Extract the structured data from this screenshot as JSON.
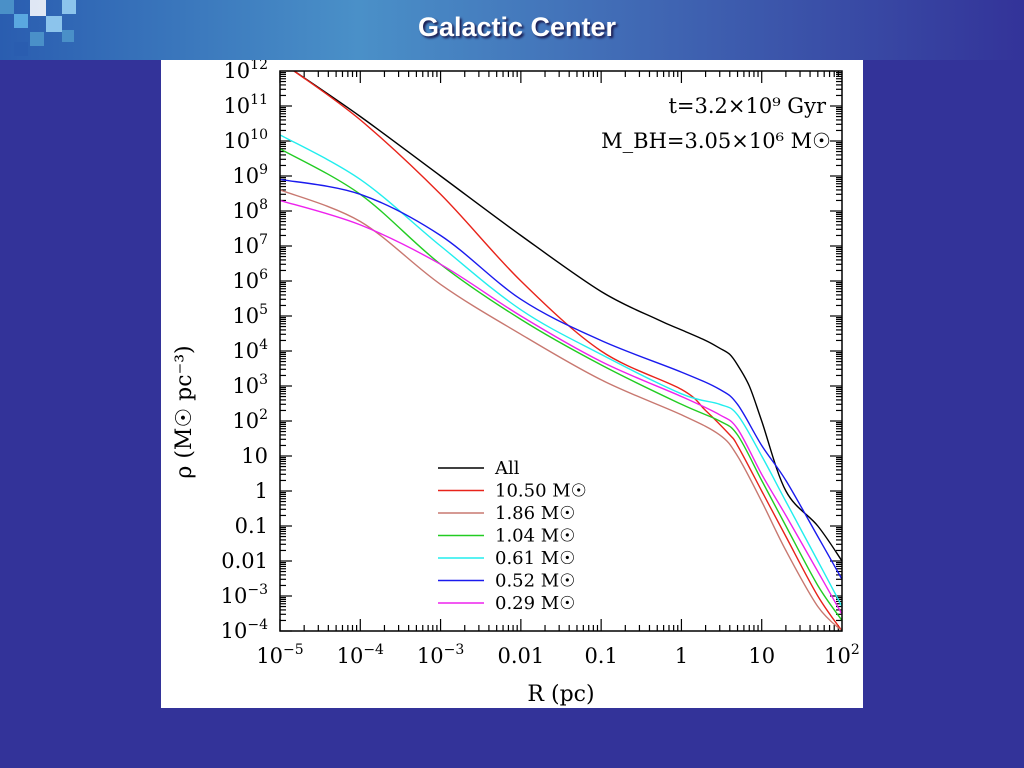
{
  "slide": {
    "title": "Galactic Center"
  },
  "colors": {
    "background": "#333399",
    "all": "#000000",
    "m1050": "#e8231a",
    "m186": "#c87870",
    "m104": "#22cc22",
    "m061": "#22eeee",
    "m052": "#1a1aee",
    "m029": "#ee22ee"
  },
  "chart_data": {
    "type": "line",
    "xlabel": "R (pc)",
    "ylabel": "ρ (M☉ pc⁻³)",
    "x_scale": "log",
    "y_scale": "log",
    "xlim": [
      1e-05,
      100
    ],
    "ylim": [
      0.0001,
      1000000000000
    ],
    "x_ticks": [
      {
        "value": 1e-05,
        "base": "10",
        "exp": "−5"
      },
      {
        "value": 0.0001,
        "base": "10",
        "exp": "−4"
      },
      {
        "value": 0.001,
        "base": "10",
        "exp": "−3"
      },
      {
        "value": 0.01,
        "base": "0.01",
        "exp": ""
      },
      {
        "value": 0.1,
        "base": "0.1",
        "exp": ""
      },
      {
        "value": 1,
        "base": "1",
        "exp": ""
      },
      {
        "value": 10,
        "base": "10",
        "exp": ""
      },
      {
        "value": 100,
        "base": "10",
        "exp": "2"
      }
    ],
    "y_ticks": [
      {
        "value": 0.0001,
        "base": "10",
        "exp": "−4"
      },
      {
        "value": 0.001,
        "base": "10",
        "exp": "−3"
      },
      {
        "value": 0.01,
        "base": "0.01",
        "exp": ""
      },
      {
        "value": 0.1,
        "base": "0.1",
        "exp": ""
      },
      {
        "value": 1,
        "base": "1",
        "exp": ""
      },
      {
        "value": 10,
        "base": "10",
        "exp": ""
      },
      {
        "value": 100,
        "base": "10",
        "exp": "2"
      },
      {
        "value": 1000,
        "base": "10",
        "exp": "3"
      },
      {
        "value": 10000,
        "base": "10",
        "exp": "4"
      },
      {
        "value": 100000,
        "base": "10",
        "exp": "5"
      },
      {
        "value": 1000000,
        "base": "10",
        "exp": "6"
      },
      {
        "value": 10000000,
        "base": "10",
        "exp": "7"
      },
      {
        "value": 100000000,
        "base": "10",
        "exp": "8"
      },
      {
        "value": 1000000000,
        "base": "10",
        "exp": "9"
      },
      {
        "value": 10000000000,
        "base": "10",
        "exp": "10"
      },
      {
        "value": 100000000000,
        "base": "10",
        "exp": "11"
      },
      {
        "value": 1000000000000,
        "base": "10",
        "exp": "12"
      }
    ],
    "annotations": [
      {
        "text": "t=3.2×10⁹ Gyr"
      },
      {
        "text": "M_BH=3.05×10⁶ M☉"
      }
    ],
    "legend_position": "lower-center",
    "series": [
      {
        "name": "All",
        "color": "#000000",
        "x": [
          1.5e-05,
          0.0001,
          0.001,
          0.01,
          0.1,
          0.5,
          1,
          2,
          3,
          4,
          5,
          7,
          10,
          20,
          50,
          100
        ],
        "y": [
          1000000000000,
          50000000000,
          1000000000,
          20000000,
          500000,
          80000,
          40000,
          20000,
          12000,
          8000,
          4000,
          1000,
          100,
          1,
          0.1,
          0.01
        ]
      },
      {
        "name": "10.50 M☉",
        "color": "#e8231a",
        "x": [
          1.5e-05,
          0.0001,
          0.001,
          0.01,
          0.1,
          1,
          2,
          4,
          5,
          10,
          20,
          50,
          100
        ],
        "y": [
          1000000000000,
          40000000000,
          300000000,
          1000000,
          10000,
          800,
          200,
          40,
          20,
          1,
          0.05,
          0.001,
          0.0001
        ]
      },
      {
        "name": "1.86 M☉",
        "color": "#c87870",
        "x": [
          1e-05,
          0.0001,
          0.001,
          0.01,
          0.1,
          1,
          3,
          5,
          10,
          20,
          50,
          100
        ],
        "y": [
          400000000,
          50000000,
          800000,
          30000,
          1500,
          150,
          40,
          10,
          0.5,
          0.02,
          0.0005,
          0.0001
        ]
      },
      {
        "name": "1.04 M☉",
        "color": "#22cc22",
        "x": [
          1e-05,
          0.0001,
          0.001,
          0.01,
          0.1,
          1,
          3,
          5,
          10,
          20,
          50,
          100
        ],
        "y": [
          6000000000,
          300000000,
          3000000,
          80000,
          4000,
          300,
          100,
          40,
          2,
          0.1,
          0.002,
          0.0002
        ]
      },
      {
        "name": "0.61 M☉",
        "color": "#22eeee",
        "x": [
          1e-05,
          0.0001,
          0.001,
          0.01,
          0.1,
          1,
          3,
          5,
          10,
          20,
          50,
          100
        ],
        "y": [
          15000000000,
          800000000,
          10000000,
          150000,
          8000,
          600,
          300,
          150,
          10,
          0.5,
          0.01,
          0.0005
        ]
      },
      {
        "name": "0.52 M☉",
        "color": "#1a1aee",
        "x": [
          1e-05,
          0.0001,
          0.001,
          0.01,
          0.1,
          1,
          3,
          5,
          10,
          20,
          50,
          100
        ],
        "y": [
          800000000,
          300000000,
          20000000,
          300000,
          20000,
          2500,
          800,
          300,
          20,
          2,
          0.05,
          0.003
        ]
      },
      {
        "name": "0.29 M☉",
        "color": "#ee22ee",
        "x": [
          1e-05,
          0.0001,
          0.001,
          0.01,
          0.1,
          1,
          3,
          5,
          10,
          20,
          50,
          100
        ],
        "y": [
          200000000,
          40000000,
          3000000,
          100000,
          5000,
          500,
          150,
          60,
          3,
          0.2,
          0.005,
          0.0003
        ]
      }
    ]
  }
}
